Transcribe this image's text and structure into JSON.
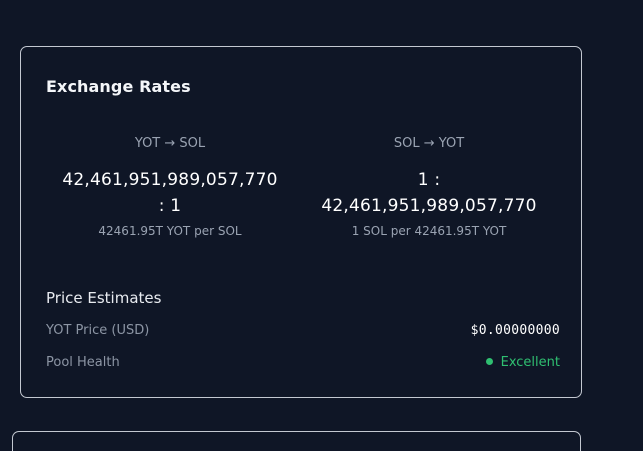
{
  "exchange_rates": {
    "title": "Exchange Rates",
    "yot_to_sol": {
      "pair": "YOT → SOL",
      "value_line1": "42,461,951,989,057,770",
      "value_line2": ": 1",
      "sub": "42461.95T YOT per SOL"
    },
    "sol_to_yot": {
      "pair": "SOL → YOT",
      "value_line1": "1 :",
      "value_line2": "42,461,951,989,057,770",
      "sub": "1 SOL per 42461.95T YOT"
    }
  },
  "price_estimates": {
    "title": "Price Estimates",
    "yot_price_label": "YOT Price (USD)",
    "yot_price_value": "$0.00000000",
    "pool_health_label": "Pool Health",
    "pool_health_value": "Excellent",
    "pool_health_color": "#2fbf71"
  },
  "colors": {
    "background": "#0f1626",
    "border": "#c3c8d1",
    "muted_text": "#9aa3b2",
    "accent_green": "#2fbf71"
  }
}
